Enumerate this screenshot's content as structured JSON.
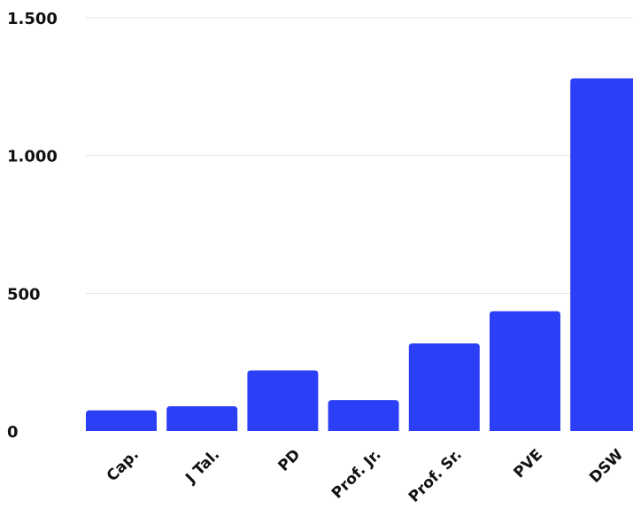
{
  "chart_data": {
    "type": "bar",
    "categories": [
      "Cap.",
      "J Tal.",
      "PD",
      "Prof. Jr.",
      "Prof. Sr.",
      "PVE",
      "DSW"
    ],
    "values": [
      75,
      90,
      220,
      112,
      318,
      435,
      1280
    ],
    "ylim": [
      0,
      1500
    ],
    "yticks": [
      0,
      500,
      1000,
      1500
    ],
    "ytick_labels": [
      "0",
      "500",
      "1.000",
      "1.500"
    ],
    "grid": true,
    "bar_color": "#2b3ff7"
  }
}
